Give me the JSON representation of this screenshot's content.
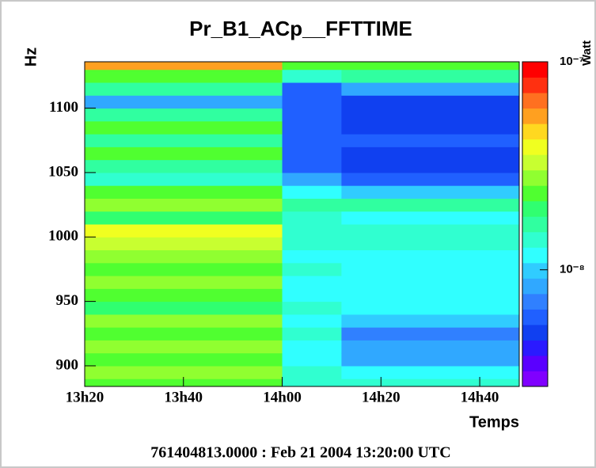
{
  "chart_data": {
    "type": "heatmap",
    "title": "Pr_B1_ACp__FFTTIME",
    "xlabel": "Temps",
    "ylabel": "Hz",
    "zlabel": "Watt",
    "footer": "761404813.0000 : Feb 21 2004 13:20:00 UTC",
    "xlim": [
      800,
      888
    ],
    "ylim": [
      884,
      1136
    ],
    "zlim": [
      2.75e-09,
      1e-07
    ],
    "zlog": true,
    "xticks": [
      {
        "value": 800,
        "label": "13h20"
      },
      {
        "value": 820,
        "label": "13h40"
      },
      {
        "value": 840,
        "label": "14h00"
      },
      {
        "value": 860,
        "label": "14h20"
      },
      {
        "value": 880,
        "label": "14h40"
      }
    ],
    "yticks": [
      900,
      950,
      1000,
      1050,
      1100
    ],
    "zticks": [
      {
        "value": 1e-07,
        "label": "10⁻⁷"
      },
      {
        "value": 1e-08,
        "label": "10⁻⁸"
      }
    ],
    "x_edges": [
      800,
      840,
      852,
      888
    ],
    "y_edges": [
      884,
      890,
      900,
      910,
      920,
      930,
      940,
      950,
      960,
      970,
      980,
      990,
      1000,
      1010,
      1020,
      1030,
      1040,
      1050,
      1060,
      1070,
      1080,
      1090,
      1100,
      1110,
      1120,
      1130,
      1136
    ],
    "z": [
      [
        2.2e-08,
        3e-08,
        2.2e-08,
        2.8e-08,
        2.2e-08,
        2.6e-08,
        2e-08,
        2.4e-08,
        2.8e-08,
        2.2e-08,
        2.6e-08,
        3.2e-08,
        3.6e-08,
        2e-08,
        2.6e-08,
        2.2e-08,
        1.3e-08,
        1.8e-08,
        2.2e-08,
        1.8e-08,
        2.2e-08,
        1.6e-08,
        9e-09,
        1.8e-08,
        2.4e-08,
        5.5e-08
      ],
      [
        1.5e-08,
        1.3e-08,
        1.2e-08,
        1.2e-08,
        1.3e-08,
        1.2e-08,
        1.3e-08,
        1.2e-08,
        1.2e-08,
        1.3e-08,
        1.2e-08,
        1.3e-08,
        1.5e-08,
        1.4e-08,
        1.8e-08,
        1.2e-08,
        8e-09,
        6e-09,
        6e-09,
        5.5e-09,
        6e-09,
        5.5e-09,
        6e-09,
        6e-09,
        1.5e-08,
        2.2e-08
      ],
      [
        1.3e-08,
        1.2e-08,
        9e-09,
        8e-09,
        7.5e-09,
        1e-08,
        1.2e-08,
        1.1e-08,
        1.2e-08,
        1.1e-08,
        1.2e-08,
        1.3e-08,
        1.4e-08,
        1.2e-08,
        1.6e-08,
        1e-08,
        6e-09,
        4.6e-09,
        5e-09,
        5.5e-09,
        5e-09,
        4.8e-09,
        5e-09,
        8e-09,
        1.6e-08,
        2.2e-08
      ]
    ],
    "colors": [
      "#8000ff",
      "#5a00ff",
      "#2a1aff",
      "#1040f0",
      "#2060ff",
      "#3080ff",
      "#30a8ff",
      "#30ccff",
      "#30ffff",
      "#30ffd0",
      "#30ffa0",
      "#30ff70",
      "#50ff30",
      "#90ff30",
      "#c8ff30",
      "#f0ff20",
      "#ffd820",
      "#ffa020",
      "#ff7020",
      "#ff3010",
      "#ff0000"
    ]
  }
}
